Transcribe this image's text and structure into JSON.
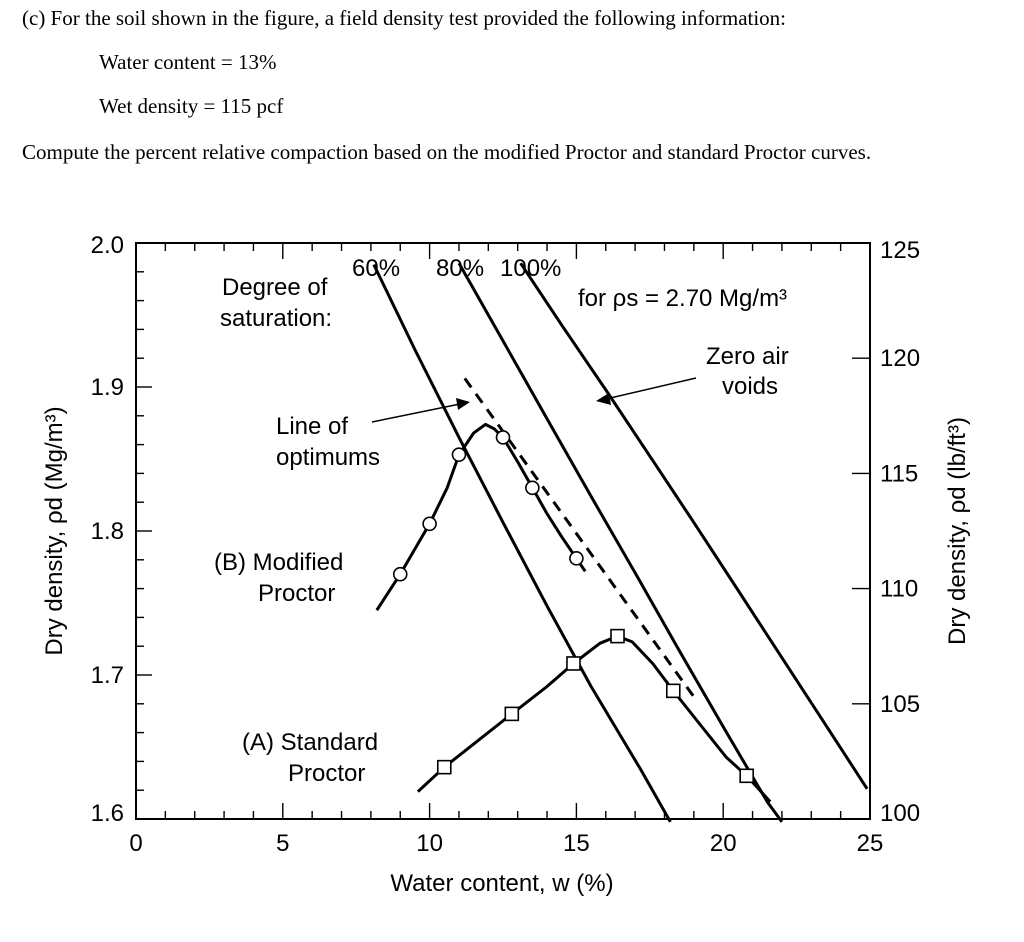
{
  "problem": {
    "intro": "(c) For the soil shown in the figure, a field density test provided the following information:",
    "given_water_content": "Water content = 13%",
    "given_wet_density": "Wet density = 115 pcf",
    "task": "Compute the percent relative compaction based on the modified Proctor and standard Proctor curves."
  },
  "chart_data": {
    "type": "line",
    "xlabel": "Water content, w (%)",
    "ylabel_left": "Dry density, ρd (Mg/m³)",
    "ylabel_right": "Dry density, ρd (lb/ft³)",
    "xlim": [
      0,
      25
    ],
    "ylim_left": [
      1.6,
      2.0
    ],
    "ylim_right": [
      100,
      125
    ],
    "x_ticks": [
      0,
      5,
      10,
      15,
      20,
      25
    ],
    "y_ticks_left": [
      1.6,
      1.7,
      1.8,
      1.9,
      2.0
    ],
    "y_ticks_right": [
      100,
      105,
      110,
      115,
      120,
      125
    ],
    "tick_labels": {
      "x": [
        "0",
        "5",
        "10",
        "15",
        "20",
        "25"
      ],
      "y_left": [
        "1.6",
        "1.7",
        "1.8",
        "1.9",
        "2.0"
      ],
      "y_right": [
        "100",
        "105",
        "110",
        "115",
        "120",
        "125"
      ]
    },
    "grid": false,
    "annotations": {
      "degree_of_saturation_line1": "Degree of",
      "degree_of_saturation_line2": "saturation:",
      "s60": "60%",
      "s80": "80%",
      "s100": "100%",
      "for_rho": "for ρs = 2.70 Mg/m³",
      "zav_line1": "Zero air",
      "zav_line2": "voids",
      "optimums_line1": "Line of",
      "optimums_line2": "optimums",
      "modified_line1": "(B) Modified",
      "modified_line2": "Proctor",
      "standard_line1": "(A) Standard",
      "standard_line2": "Proctor"
    },
    "series": [
      {
        "key": "modified",
        "style": "solid",
        "marker": "circle",
        "points": [
          [
            9.0,
            1.77
          ],
          [
            10.0,
            1.805
          ],
          [
            11.0,
            1.853
          ],
          [
            12.5,
            1.865
          ],
          [
            13.5,
            1.83
          ],
          [
            15.0,
            1.781
          ]
        ],
        "curve": [
          [
            8.2,
            1.745
          ],
          [
            9.0,
            1.77
          ],
          [
            10.0,
            1.805
          ],
          [
            10.6,
            1.83
          ],
          [
            11.0,
            1.853
          ],
          [
            11.5,
            1.868
          ],
          [
            11.9,
            1.874
          ],
          [
            12.2,
            1.871
          ],
          [
            12.5,
            1.865
          ],
          [
            13.0,
            1.848
          ],
          [
            13.5,
            1.83
          ],
          [
            14.0,
            1.812
          ],
          [
            14.5,
            1.796
          ],
          [
            15.0,
            1.781
          ],
          [
            15.3,
            1.772
          ]
        ]
      },
      {
        "key": "standard",
        "style": "solid",
        "marker": "square",
        "points": [
          [
            10.5,
            1.636
          ],
          [
            12.8,
            1.673
          ],
          [
            14.9,
            1.708
          ],
          [
            16.4,
            1.727
          ],
          [
            18.3,
            1.689
          ],
          [
            20.8,
            1.63
          ]
        ],
        "curve": [
          [
            9.6,
            1.619
          ],
          [
            10.5,
            1.636
          ],
          [
            11.5,
            1.652
          ],
          [
            12.8,
            1.673
          ],
          [
            14.0,
            1.692
          ],
          [
            14.9,
            1.708
          ],
          [
            15.8,
            1.722
          ],
          [
            16.4,
            1.727
          ],
          [
            16.9,
            1.723
          ],
          [
            17.6,
            1.708
          ],
          [
            18.3,
            1.689
          ],
          [
            19.2,
            1.666
          ],
          [
            20.1,
            1.643
          ],
          [
            20.8,
            1.63
          ],
          [
            21.6,
            1.612
          ]
        ]
      },
      {
        "key": "s60",
        "style": "solid",
        "marker": "none",
        "curve": [
          [
            8.1,
            1.985
          ],
          [
            9.5,
            1.926
          ],
          [
            11.0,
            1.865
          ],
          [
            12.5,
            1.806
          ],
          [
            14.0,
            1.748
          ],
          [
            15.5,
            1.692
          ],
          [
            17.2,
            1.634
          ],
          [
            18.2,
            1.598
          ]
        ]
      },
      {
        "key": "s80",
        "style": "solid",
        "marker": "none",
        "curve": [
          [
            11.0,
            1.986
          ],
          [
            12.5,
            1.932
          ],
          [
            14.0,
            1.878
          ],
          [
            15.5,
            1.824
          ],
          [
            17.0,
            1.771
          ],
          [
            18.5,
            1.717
          ],
          [
            20.0,
            1.664
          ],
          [
            21.5,
            1.612
          ],
          [
            22.0,
            1.598
          ]
        ]
      },
      {
        "key": "zav",
        "style": "solid",
        "marker": "none",
        "curve": [
          [
            13.1,
            1.986
          ],
          [
            14.5,
            1.943
          ],
          [
            16.0,
            1.898
          ],
          [
            17.5,
            1.852
          ],
          [
            19.0,
            1.806
          ],
          [
            20.5,
            1.759
          ],
          [
            22.0,
            1.712
          ],
          [
            23.5,
            1.665
          ],
          [
            24.9,
            1.621
          ]
        ]
      },
      {
        "key": "optimums",
        "style": "dashed",
        "marker": "none",
        "curve": [
          [
            11.2,
            1.906
          ],
          [
            19.1,
            1.682
          ]
        ]
      }
    ]
  }
}
